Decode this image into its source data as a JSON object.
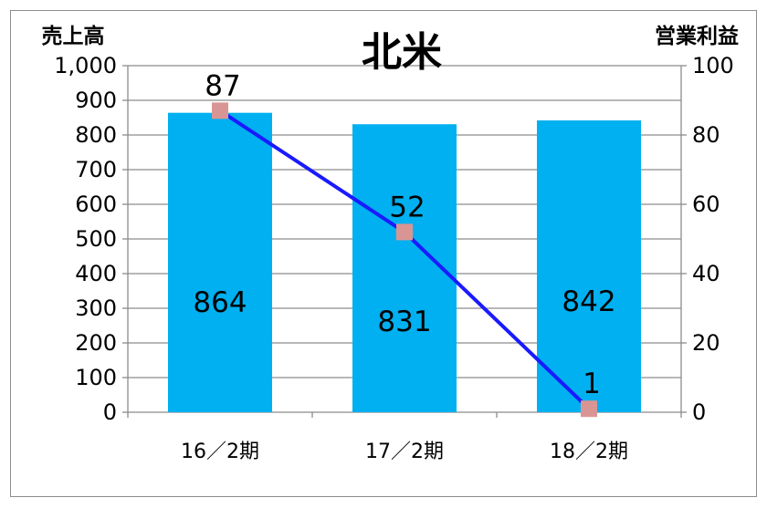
{
  "chart_data": {
    "type": "bar+line",
    "title": "北米",
    "y_left_label": "売上高",
    "y_right_label": "営業利益",
    "categories": [
      "16／2期",
      "17／2期",
      "18／2期"
    ],
    "bar_series": {
      "values": [
        864,
        831,
        842
      ],
      "color": "#00b0f0"
    },
    "line_series": {
      "values": [
        87,
        52,
        1
      ],
      "color": "#1a1aff",
      "marker_color": "#d99594"
    },
    "y_left": {
      "min": 0,
      "max": 1000,
      "step": 100,
      "tick_labels": [
        "0",
        "100",
        "200",
        "300",
        "400",
        "500",
        "600",
        "700",
        "800",
        "900",
        "1,000"
      ]
    },
    "y_right": {
      "min": 0,
      "max": 100,
      "step": 20,
      "tick_labels": [
        "0",
        "20",
        "40",
        "60",
        "80",
        "100"
      ]
    },
    "bar_label_values": [
      "864",
      "831",
      "842"
    ],
    "line_label_values": [
      "87",
      "52",
      "1"
    ],
    "grid": "horizontal"
  }
}
